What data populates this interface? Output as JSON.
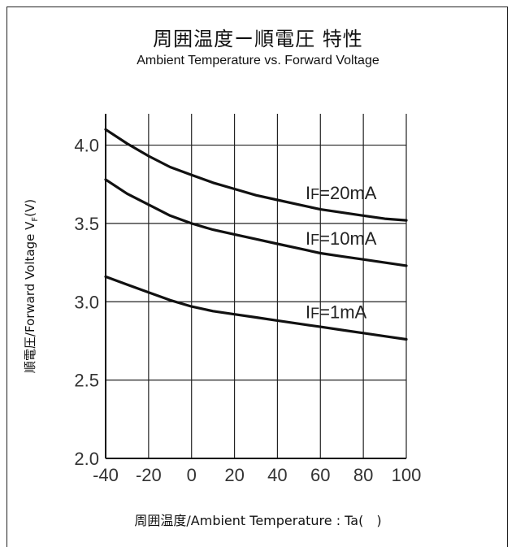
{
  "chart_data": {
    "type": "line",
    "title": "周囲温度ー順電圧 特性",
    "subtitle": "Ambient Temperature vs. Forward Voltage",
    "xlabel": "周囲温度/Ambient Temperature : Ta(　)",
    "ylabel": "順電圧/Forward Voltage V",
    "ylabel_sub": "F",
    "ylabel_unit": "(V)",
    "xlim": [
      -40,
      100
    ],
    "ylim": [
      2.0,
      4.2
    ],
    "x_ticks": [
      "-40",
      "-20",
      "0",
      "20",
      "40",
      "60",
      "80",
      "100"
    ],
    "y_ticks": [
      "2.0",
      "2.5",
      "3.0",
      "3.5",
      "4.0"
    ],
    "grid": true,
    "x": [
      -40,
      -30,
      -20,
      -10,
      0,
      10,
      20,
      30,
      40,
      50,
      60,
      70,
      80,
      90,
      100
    ],
    "series": [
      {
        "name": "IF=20mA",
        "label_main": "I",
        "label_sub": "F",
        "label_rest": "=20mA",
        "values": [
          4.1,
          4.01,
          3.93,
          3.86,
          3.81,
          3.76,
          3.72,
          3.68,
          3.65,
          3.62,
          3.59,
          3.57,
          3.55,
          3.53,
          3.52
        ]
      },
      {
        "name": "IF=10mA",
        "label_main": "I",
        "label_sub": "F",
        "label_rest": "=10mA",
        "values": [
          3.78,
          3.69,
          3.62,
          3.55,
          3.5,
          3.46,
          3.43,
          3.4,
          3.37,
          3.34,
          3.31,
          3.29,
          3.27,
          3.25,
          3.23
        ]
      },
      {
        "name": "IF=1mA",
        "label_main": "I",
        "label_sub": "F",
        "label_rest": "=1mA",
        "values": [
          3.16,
          3.11,
          3.06,
          3.01,
          2.97,
          2.94,
          2.92,
          2.9,
          2.88,
          2.86,
          2.84,
          2.82,
          2.8,
          2.78,
          2.76
        ]
      }
    ]
  }
}
